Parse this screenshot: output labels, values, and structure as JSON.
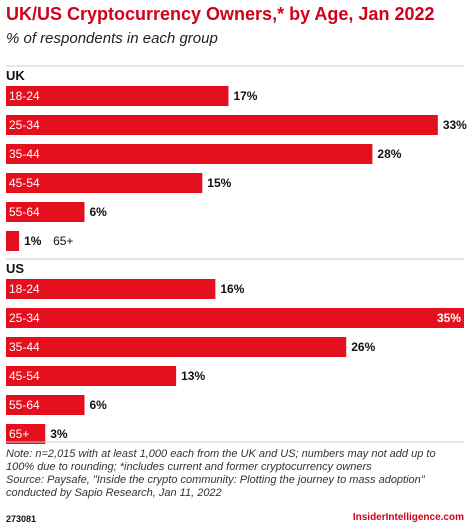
{
  "chart_data": {
    "type": "bar",
    "orientation": "horizontal",
    "title": "UK/US Cryptocurrency Owners,* by Age, Jan 2022",
    "subtitle": "% of respondents in each group",
    "unit": "%",
    "xlim": [
      0,
      35
    ],
    "groups": [
      {
        "name": "UK",
        "categories": [
          "18-24",
          "25-34",
          "35-44",
          "45-54",
          "55-64",
          "65+"
        ],
        "values": [
          17,
          33,
          28,
          15,
          6,
          1
        ]
      },
      {
        "name": "US",
        "categories": [
          "18-24",
          "25-34",
          "35-44",
          "45-54",
          "55-64",
          "65+"
        ],
        "values": [
          16,
          35,
          26,
          13,
          6,
          3
        ]
      }
    ],
    "colors": {
      "bar": "#e4101e",
      "inside_text": "#ffffff",
      "outside_text": "#111111",
      "title": "#d0021b"
    }
  },
  "notes": [
    "Note: n=2,015 with at least 1,000 each from the UK and US; numbers may not add up to",
    "100% due to rounding; *includes current and former cryptocurrency owners",
    "Source: Paysafe, \"Inside the crypto community: Plotting the journey to mass adoption\"",
    "conducted by Sapio Research, Jan 11, 2022"
  ],
  "footer": {
    "id": "273081",
    "brand": "InsiderIntelligence.com"
  }
}
